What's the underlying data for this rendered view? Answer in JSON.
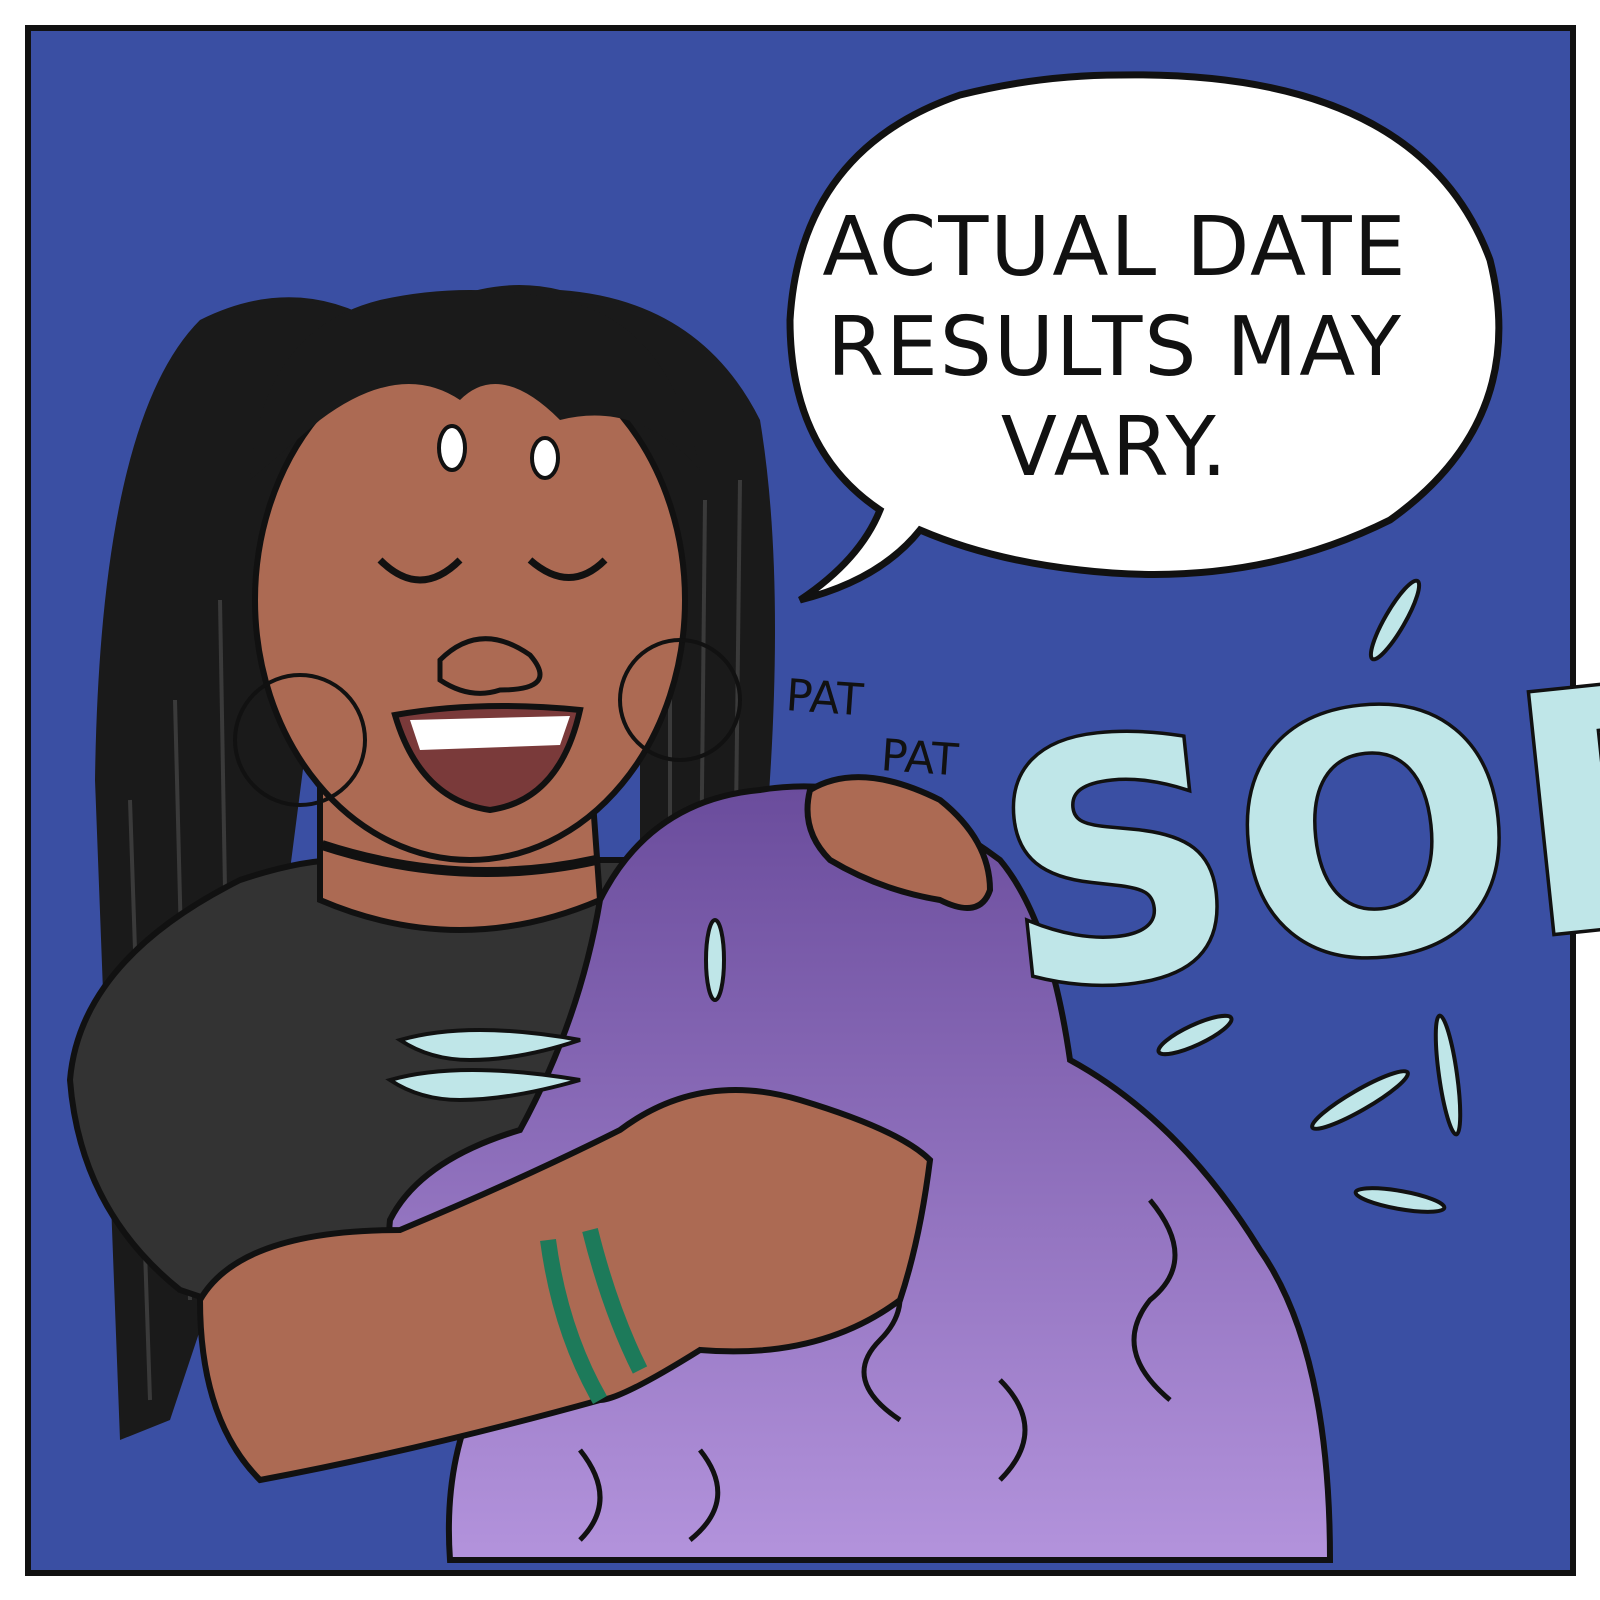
{
  "speech_balloon": {
    "lines": [
      "ACTUAL DATE",
      "RESULTS MAY",
      "VARY."
    ]
  },
  "sound_effects": {
    "pat_1": "PAT",
    "pat_2": "PAT",
    "sob": "SOB!"
  },
  "colors": {
    "background": "#3a4fa3",
    "border": "#111111",
    "skin": "#ac6a53",
    "hair_dark": "#1a1a1a",
    "shirt": "#333333",
    "purple_hair": "#8a6ac0",
    "tears": "#bfe6e8",
    "bracelet": "#1d7a5a"
  }
}
